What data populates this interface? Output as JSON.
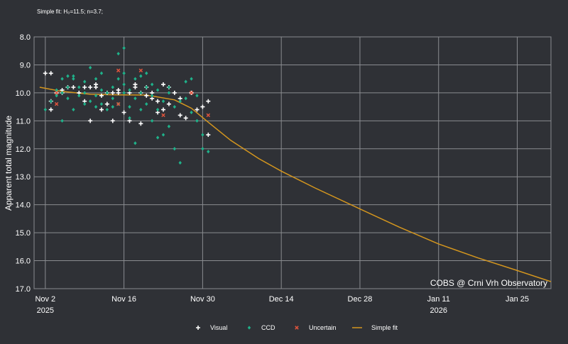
{
  "fit_note": "Simple fit: H₀=11.5; n=3.7;",
  "chart_data": {
    "type": "scatter",
    "ylabel": "Apparent total magnitude",
    "xlabel": "",
    "credit": "COBS @ Crni Vrh Observatory",
    "y_inverted": true,
    "ylim": [
      8.0,
      17.0
    ],
    "xlim": [
      "2025-10-31",
      "2026-01-31"
    ],
    "grid": true,
    "legend_position": "bottom",
    "colors": {
      "Visual": "#ffffff",
      "CCD": "#1fb28a",
      "Uncertain": "#e0543c",
      "Simple fit": "#d4961e"
    },
    "y_ticks": [
      "8.0",
      "9.0",
      "10.0",
      "11.0",
      "12.0",
      "13.0",
      "14.0",
      "15.0",
      "16.0",
      "17.0"
    ],
    "x_ticks": [
      {
        "date": "2025-11-02",
        "label": "Nov 2",
        "year": "2025"
      },
      {
        "date": "2025-11-16",
        "label": "Nov 16",
        "year": ""
      },
      {
        "date": "2025-11-30",
        "label": "Nov 30",
        "year": ""
      },
      {
        "date": "2025-12-14",
        "label": "Dec 14",
        "year": ""
      },
      {
        "date": "2025-12-28",
        "label": "Dec 28",
        "year": ""
      },
      {
        "date": "2026-01-11",
        "label": "Jan 11",
        "year": "2026"
      },
      {
        "date": "2026-01-25",
        "label": "Jan 25",
        "year": ""
      }
    ],
    "legend": [
      "Visual",
      "CCD",
      "Uncertain",
      "Simple fit"
    ],
    "series": [
      {
        "name": "Visual",
        "marker": "plus",
        "points": [
          [
            "2025-11-02",
            9.3
          ],
          [
            "2025-11-03",
            9.3
          ],
          [
            "2025-11-03",
            10.3
          ],
          [
            "2025-11-03",
            10.6
          ],
          [
            "2025-11-04",
            10.0
          ],
          [
            "2025-11-05",
            10.0
          ],
          [
            "2025-11-05",
            9.9
          ],
          [
            "2025-11-06",
            9.8
          ],
          [
            "2025-11-07",
            9.8
          ],
          [
            "2025-11-08",
            10.0
          ],
          [
            "2025-11-09",
            9.8
          ],
          [
            "2025-11-09",
            10.3
          ],
          [
            "2025-11-10",
            11.0
          ],
          [
            "2025-11-10",
            9.8
          ],
          [
            "2025-11-11",
            9.8
          ],
          [
            "2025-11-11",
            9.7
          ],
          [
            "2025-11-12",
            10.1
          ],
          [
            "2025-11-12",
            10.6
          ],
          [
            "2025-11-13",
            10.4
          ],
          [
            "2025-11-13",
            10.0
          ],
          [
            "2025-11-14",
            11.0
          ],
          [
            "2025-11-14",
            10.0
          ],
          [
            "2025-11-15",
            10.0
          ],
          [
            "2025-11-15",
            9.9
          ],
          [
            "2025-11-16",
            10.7
          ],
          [
            "2025-11-17",
            11.0
          ],
          [
            "2025-11-17",
            10.0
          ],
          [
            "2025-11-18",
            9.8
          ],
          [
            "2025-11-18",
            9.7
          ],
          [
            "2025-11-19",
            10.0
          ],
          [
            "2025-11-19",
            11.1
          ],
          [
            "2025-11-20",
            10.1
          ],
          [
            "2025-11-20",
            9.8
          ],
          [
            "2025-11-21",
            10.0
          ],
          [
            "2025-11-21",
            10.2
          ],
          [
            "2025-11-22",
            10.3
          ],
          [
            "2025-11-22",
            10.7
          ],
          [
            "2025-11-23",
            10.6
          ],
          [
            "2025-11-23",
            9.7
          ],
          [
            "2025-11-24",
            10.4
          ],
          [
            "2025-11-24",
            9.8
          ],
          [
            "2025-11-25",
            10.0
          ],
          [
            "2025-11-26",
            10.8
          ],
          [
            "2025-11-26",
            10.2
          ],
          [
            "2025-11-27",
            10.9
          ],
          [
            "2025-11-28",
            10.0
          ],
          [
            "2025-11-29",
            10.6
          ],
          [
            "2025-11-30",
            10.5
          ],
          [
            "2025-12-01",
            10.3
          ],
          [
            "2025-12-01",
            11.5
          ]
        ]
      },
      {
        "name": "CCD",
        "marker": "diamond",
        "points": [
          [
            "2025-11-02",
            10.6
          ],
          [
            "2025-11-03",
            10.3
          ],
          [
            "2025-11-04",
            10.1
          ],
          [
            "2025-11-04",
            9.9
          ],
          [
            "2025-11-05",
            9.5
          ],
          [
            "2025-11-05",
            10.0
          ],
          [
            "2025-11-05",
            11.0
          ],
          [
            "2025-11-06",
            9.4
          ],
          [
            "2025-11-06",
            9.8
          ],
          [
            "2025-11-06",
            10.2
          ],
          [
            "2025-11-07",
            9.5
          ],
          [
            "2025-11-07",
            9.4
          ],
          [
            "2025-11-07",
            10.6
          ],
          [
            "2025-11-08",
            10.1
          ],
          [
            "2025-11-08",
            9.8
          ],
          [
            "2025-11-09",
            10.0
          ],
          [
            "2025-11-09",
            9.6
          ],
          [
            "2025-11-09",
            10.4
          ],
          [
            "2025-11-10",
            9.1
          ],
          [
            "2025-11-10",
            10.3
          ],
          [
            "2025-11-11",
            10.1
          ],
          [
            "2025-11-11",
            9.5
          ],
          [
            "2025-11-11",
            10.5
          ],
          [
            "2025-11-12",
            9.9
          ],
          [
            "2025-11-12",
            10.4
          ],
          [
            "2025-11-12",
            9.3
          ],
          [
            "2025-11-13",
            10.0
          ],
          [
            "2025-11-13",
            10.6
          ],
          [
            "2025-11-14",
            9.8
          ],
          [
            "2025-11-14",
            10.2
          ],
          [
            "2025-11-14",
            10.5
          ],
          [
            "2025-11-15",
            8.6
          ],
          [
            "2025-11-15",
            9.5
          ],
          [
            "2025-11-15",
            10.4
          ],
          [
            "2025-11-16",
            9.7
          ],
          [
            "2025-11-16",
            10.0
          ],
          [
            "2025-11-16",
            8.4
          ],
          [
            "2025-11-16",
            9.3
          ],
          [
            "2025-11-17",
            10.9
          ],
          [
            "2025-11-17",
            10.5
          ],
          [
            "2025-11-17",
            9.9
          ],
          [
            "2025-11-18",
            9.5
          ],
          [
            "2025-11-18",
            10.2
          ],
          [
            "2025-11-18",
            11.8
          ],
          [
            "2025-11-19",
            9.4
          ],
          [
            "2025-11-19",
            10.6
          ],
          [
            "2025-11-19",
            10.0
          ],
          [
            "2025-11-20",
            9.8
          ],
          [
            "2025-11-20",
            10.4
          ],
          [
            "2025-11-20",
            9.3
          ],
          [
            "2025-11-21",
            9.7
          ],
          [
            "2025-11-21",
            10.1
          ],
          [
            "2025-11-21",
            11.0
          ],
          [
            "2025-11-22",
            11.6
          ],
          [
            "2025-11-22",
            10.6
          ],
          [
            "2025-11-22",
            9.9
          ],
          [
            "2025-11-23",
            10.3
          ],
          [
            "2025-11-23",
            11.5
          ],
          [
            "2025-11-24",
            10.0
          ],
          [
            "2025-11-24",
            9.8
          ],
          [
            "2025-11-24",
            11.2
          ],
          [
            "2025-11-25",
            12.0
          ],
          [
            "2025-11-25",
            10.5
          ],
          [
            "2025-11-26",
            12.5
          ],
          [
            "2025-11-26",
            10.3
          ],
          [
            "2025-11-27",
            9.6
          ],
          [
            "2025-11-27",
            10.2
          ],
          [
            "2025-11-28",
            9.5
          ],
          [
            "2025-11-28",
            10.7
          ],
          [
            "2025-11-29",
            10.1
          ],
          [
            "2025-11-29",
            11.0
          ],
          [
            "2025-11-30",
            12.0
          ],
          [
            "2025-11-30",
            11.5
          ],
          [
            "2025-12-01",
            12.1
          ]
        ]
      },
      {
        "name": "Uncertain",
        "marker": "cross",
        "points": [
          [
            "2025-11-04",
            10.0
          ],
          [
            "2025-11-04",
            10.4
          ],
          [
            "2025-11-15",
            9.2
          ],
          [
            "2025-11-15",
            10.4
          ],
          [
            "2025-11-19",
            9.2
          ],
          [
            "2025-11-23",
            10.8
          ],
          [
            "2025-11-28",
            10.0
          ],
          [
            "2025-12-01",
            10.8
          ]
        ]
      },
      {
        "name": "Simple fit",
        "marker": "line",
        "points": [
          [
            "2025-11-01",
            9.8
          ],
          [
            "2025-11-05",
            9.95
          ],
          [
            "2025-11-10",
            10.05
          ],
          [
            "2025-11-15",
            10.07
          ],
          [
            "2025-11-20",
            10.08
          ],
          [
            "2025-11-25",
            10.25
          ],
          [
            "2025-11-28",
            10.55
          ],
          [
            "2025-12-01",
            11.05
          ],
          [
            "2025-12-05",
            11.7
          ],
          [
            "2025-12-10",
            12.35
          ],
          [
            "2025-12-14",
            12.8
          ],
          [
            "2025-12-20",
            13.4
          ],
          [
            "2025-12-28",
            14.15
          ],
          [
            "2026-01-04",
            14.8
          ],
          [
            "2026-01-11",
            15.4
          ],
          [
            "2026-01-18",
            15.9
          ],
          [
            "2026-01-25",
            16.35
          ],
          [
            "2026-01-31",
            16.75
          ]
        ]
      }
    ]
  }
}
